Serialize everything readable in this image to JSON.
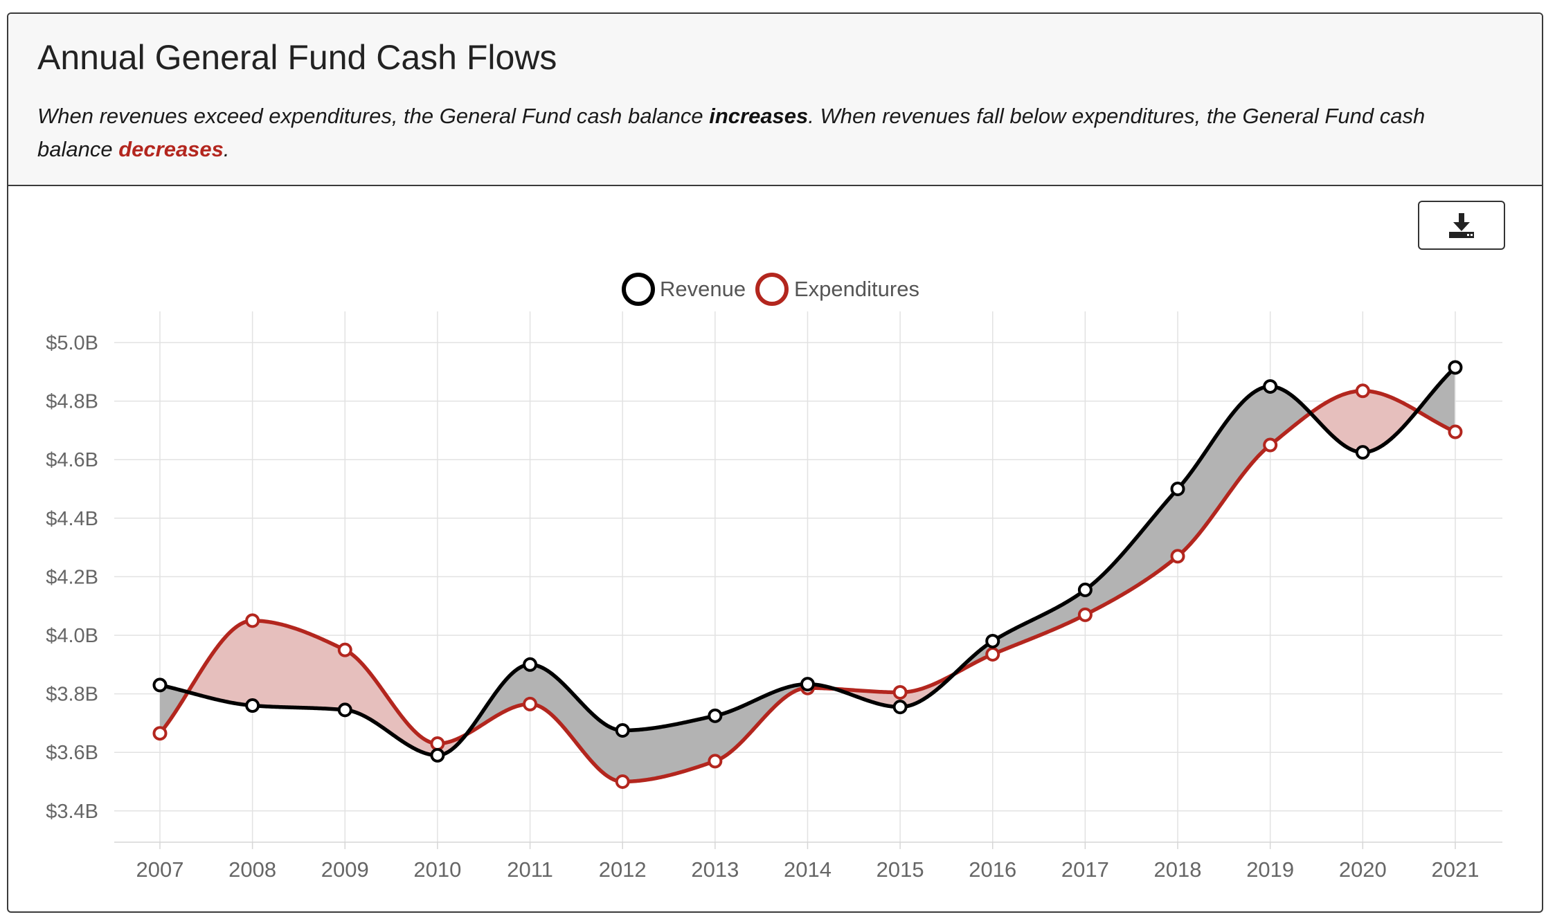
{
  "header": {
    "title": "Annual General Fund Cash Flows",
    "desc_part1": "When revenues exceed expenditures, the General Fund cash balance ",
    "desc_inc": "increases",
    "desc_part2": ". When revenues fall below expenditures, the General Fund cash balance ",
    "desc_dec": "decreases",
    "desc_part3": "."
  },
  "toolbar": {
    "download_icon": "download-icon"
  },
  "colors": {
    "revenue": "#000000",
    "expenditures": "#b3261e",
    "surplus_fill": "#b3b3b3",
    "deficit_fill": "#e6bfbd",
    "grid": "#e2e2e2",
    "tick_text": "#666666"
  },
  "chart_data": {
    "type": "line",
    "categories": [
      "2007",
      "2008",
      "2009",
      "2010",
      "2011",
      "2012",
      "2013",
      "2014",
      "2015",
      "2016",
      "2017",
      "2018",
      "2019",
      "2020",
      "2021"
    ],
    "series": [
      {
        "name": "Revenue",
        "values": [
          3.83,
          3.76,
          3.745,
          3.59,
          3.9,
          3.675,
          3.725,
          3.833,
          3.755,
          3.98,
          4.155,
          4.5,
          4.85,
          4.625,
          4.915
        ]
      },
      {
        "name": "Expenditures",
        "values": [
          3.665,
          4.05,
          3.95,
          3.63,
          3.765,
          3.5,
          3.57,
          3.82,
          3.805,
          3.935,
          4.07,
          4.27,
          4.65,
          4.835,
          4.695
        ]
      }
    ],
    "ylim": [
      3.3,
      5.1
    ],
    "yticks": [
      3.4,
      3.6,
      3.8,
      4.0,
      4.2,
      4.4,
      4.6,
      4.8,
      5.0
    ],
    "ytick_labels": [
      "$3.4B",
      "$3.6B",
      "$3.8B",
      "$4.0B",
      "$4.2B",
      "$4.4B",
      "$4.6B",
      "$4.8B",
      "$5.0B"
    ],
    "unit": "B",
    "legend_position": "top-center",
    "grid": true,
    "fill_between": true,
    "xlabel": "",
    "ylabel": ""
  }
}
